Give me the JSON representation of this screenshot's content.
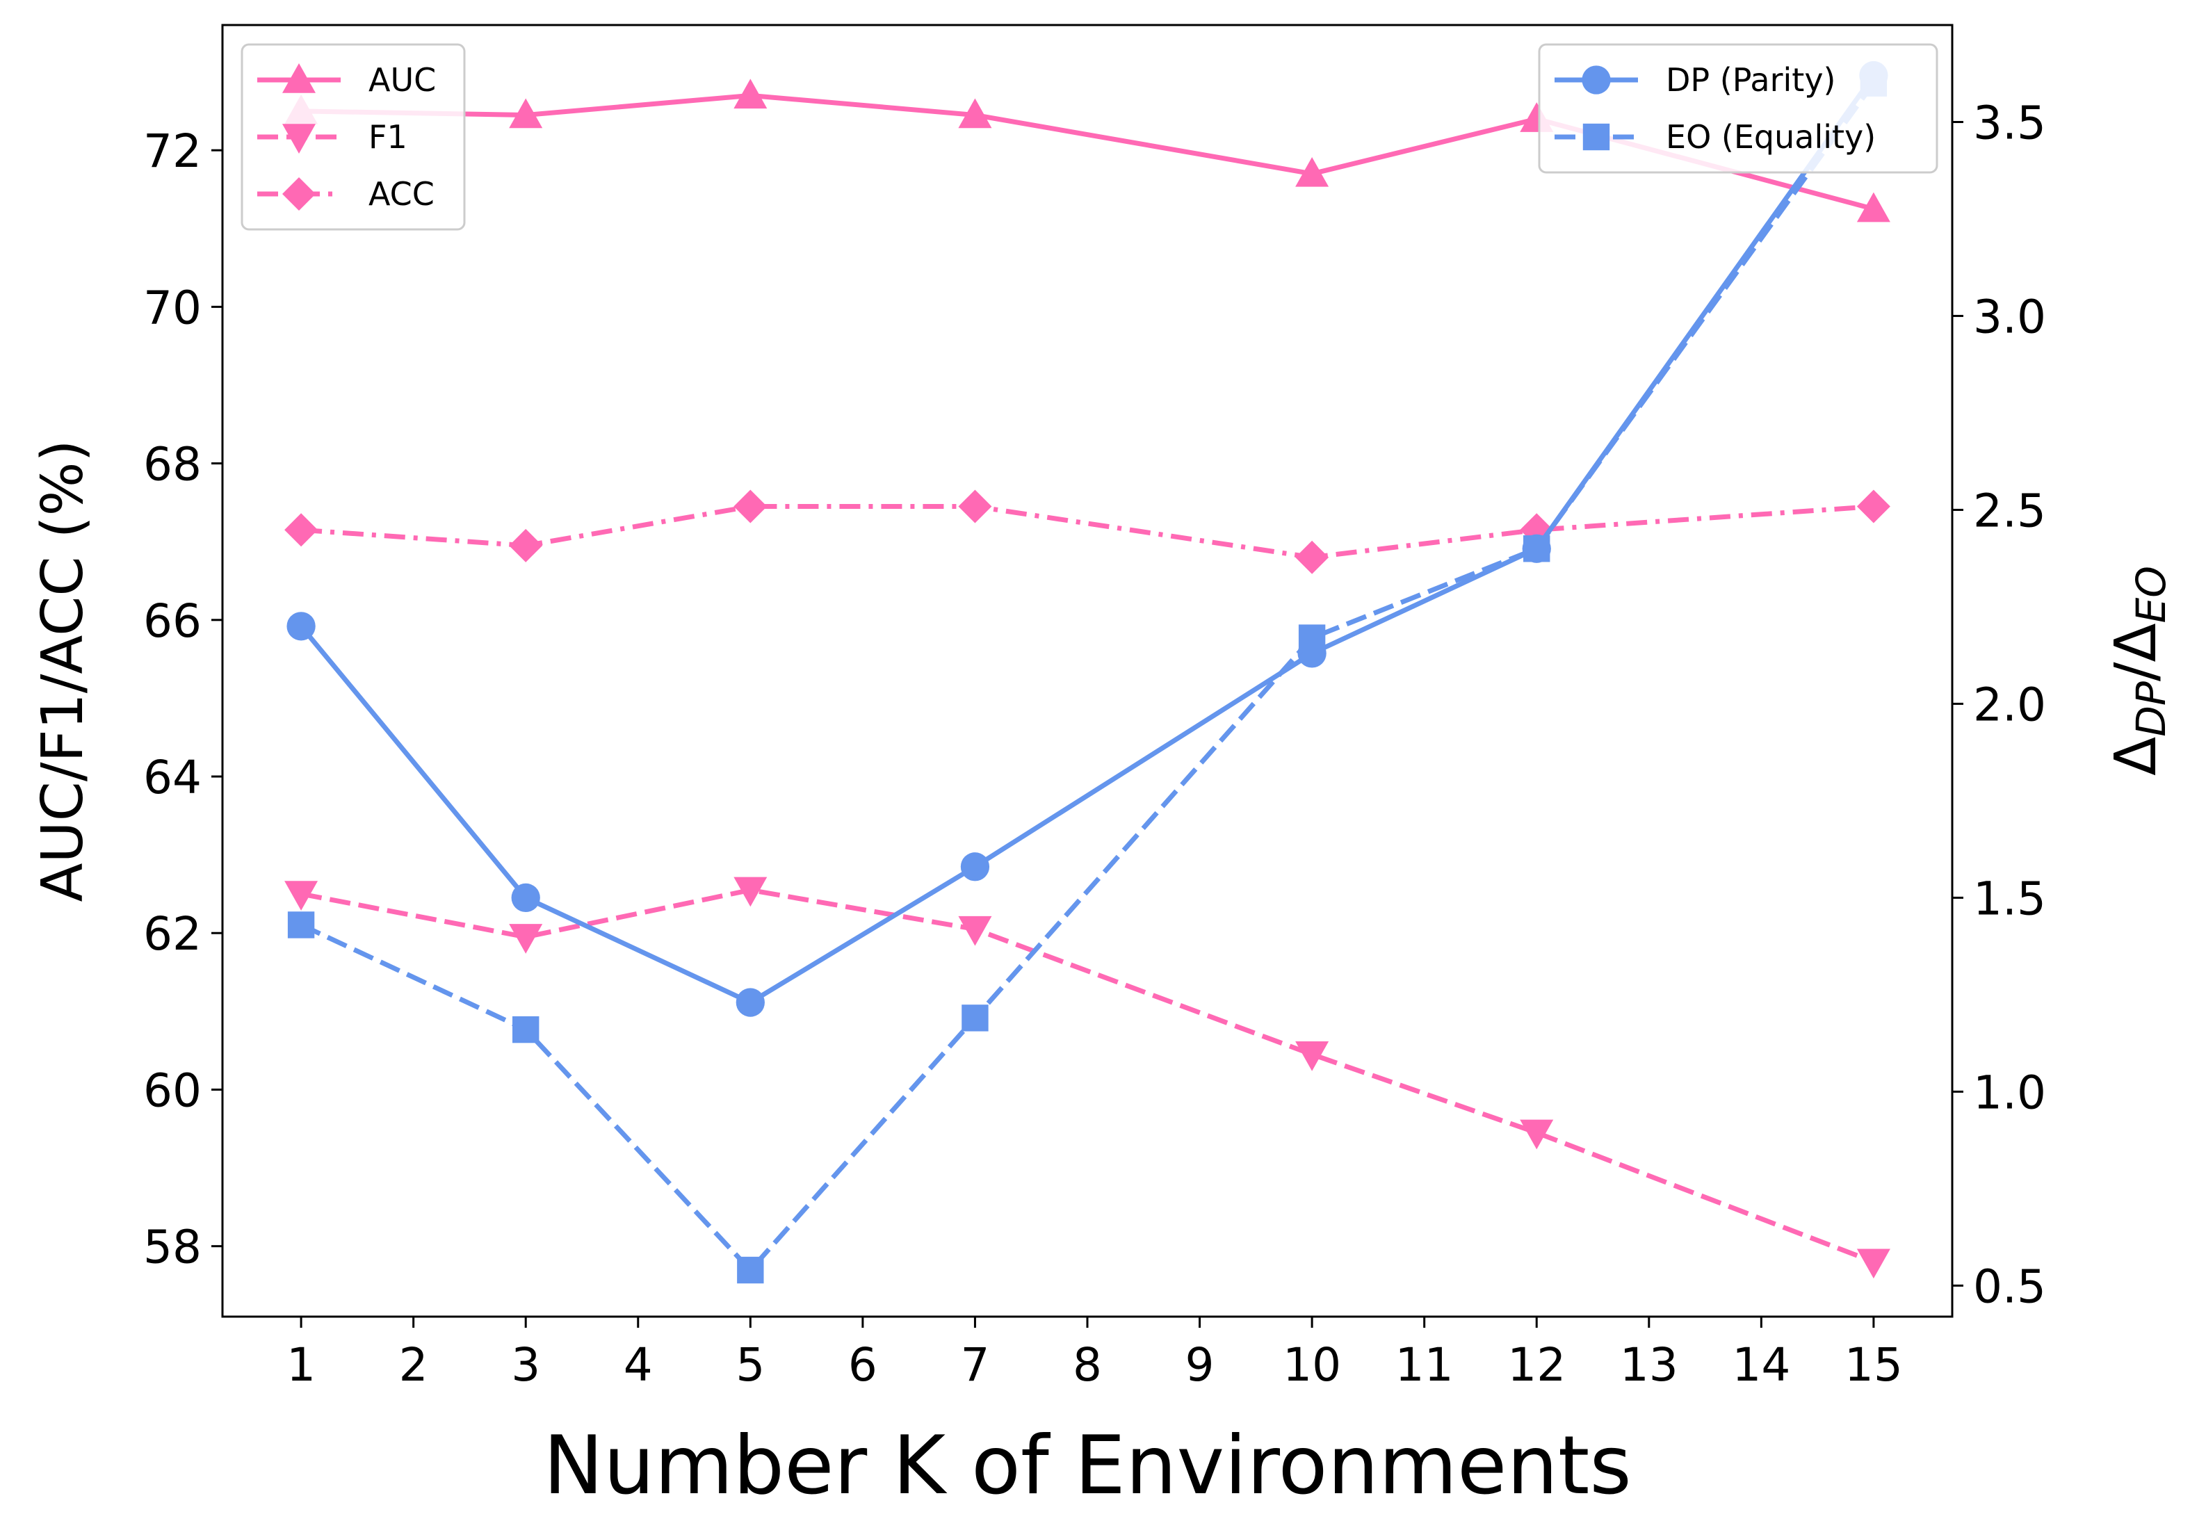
{
  "chart_data": {
    "type": "line",
    "xlabel": "Number K of Environments",
    "ylabel_left": "AUC/F1/ACC (%)",
    "ylabel_right": "Δ_{DP}/Δ_{EO}",
    "ylabel_right_base": "Δ",
    "ylabel_right_sub1": "DP",
    "ylabel_right_sep": "/",
    "ylabel_right_sub2": "EO",
    "x_ticks": [
      1,
      2,
      3,
      4,
      5,
      6,
      7,
      8,
      9,
      10,
      11,
      12,
      13,
      14,
      15
    ],
    "x_range": [
      0.3,
      15.7
    ],
    "ylim_left": [
      57.1,
      73.6
    ],
    "ylim_right": [
      0.42,
      3.75
    ],
    "yticks_left": [
      58,
      60,
      62,
      64,
      66,
      68,
      70,
      72
    ],
    "yticks_right": [
      0.5,
      1.0,
      1.5,
      2.0,
      2.5,
      3.0,
      3.5
    ],
    "ytick_labels_right": [
      "0.5",
      "1.0",
      "1.5",
      "2.0",
      "2.5",
      "3.0",
      "3.5"
    ],
    "grid": false,
    "x": [
      1,
      3,
      5,
      7,
      10,
      12,
      15
    ],
    "series_left": [
      {
        "name": "AUC",
        "values": [
          72.5,
          72.45,
          72.7,
          72.45,
          71.7,
          72.4,
          71.25
        ],
        "color": "#FF69B4",
        "marker": "triangle-up",
        "dash": "solid"
      },
      {
        "name": "F1",
        "values": [
          62.5,
          61.95,
          62.55,
          62.05,
          60.45,
          59.45,
          57.8
        ],
        "color": "#FF69B4",
        "marker": "triangle-down",
        "dash": "dashed"
      },
      {
        "name": "ACC",
        "values": [
          67.15,
          66.95,
          67.45,
          67.45,
          66.8,
          67.15,
          67.45
        ],
        "color": "#FF69B4",
        "marker": "diamond",
        "dash": "dashdot"
      }
    ],
    "series_right": [
      {
        "name": "DP (Parity)",
        "values": [
          2.2,
          1.5,
          1.23,
          1.58,
          2.13,
          2.4,
          3.62
        ],
        "color": "#6495ED",
        "marker": "circle",
        "dash": "solid"
      },
      {
        "name": "EO (Equality)",
        "values": [
          1.43,
          1.16,
          0.54,
          1.19,
          2.17,
          2.4,
          3.6
        ],
        "color": "#6495ED",
        "marker": "square",
        "dash": "dashed"
      }
    ],
    "legend_left_position": "upper-left",
    "legend_right_position": "upper-right"
  }
}
